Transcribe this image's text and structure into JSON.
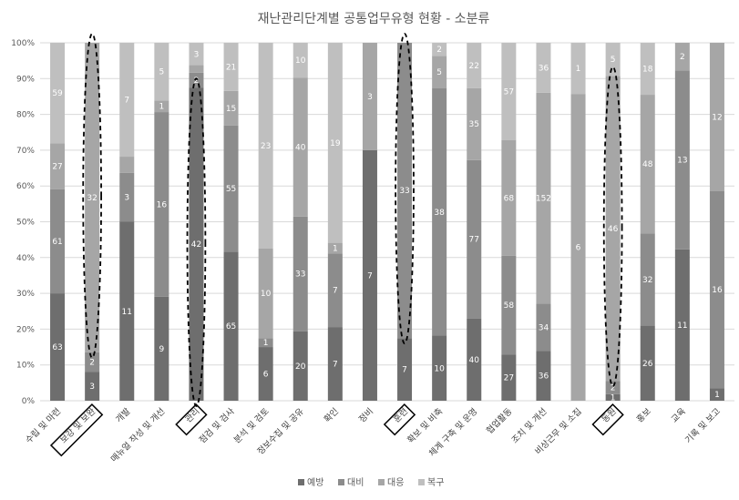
{
  "chart_data": {
    "type": "bar",
    "stacked": "percent",
    "title": "재난관리단계별 공통업무유형 현황 - 소분류",
    "xlabel": "",
    "ylabel": "",
    "ylim": [
      0,
      100
    ],
    "y_ticks": [
      "0%",
      "10%",
      "20%",
      "30%",
      "40%",
      "50%",
      "60%",
      "70%",
      "80%",
      "90%",
      "100%"
    ],
    "grid": true,
    "legend_position": "bottom",
    "categories": [
      "수립 및 마련",
      "보강 및 보완",
      "개발",
      "매뉴얼 작성 및 개선",
      "관리",
      "점검 및 검사",
      "분석 및 검토",
      "정보수집 및 공유",
      "확인",
      "정비",
      "훈련",
      "확보 및 비축",
      "체계 구축 및 운영",
      "협업활동",
      "조치 및 개선",
      "비상근무 및 소집",
      "동원",
      "홍보",
      "교육",
      "기록 및 보고"
    ],
    "highlighted_categories": [
      "보강 및 보완",
      "관리",
      "훈련",
      "동원"
    ],
    "series": [
      {
        "name": "예방",
        "color": "#6e6e6e",
        "values": [
          63,
          3,
          11,
          9,
          42,
          65,
          6,
          20,
          7,
          7,
          7,
          10,
          40,
          27,
          36,
          0,
          1,
          26,
          11,
          1
        ]
      },
      {
        "name": "대비",
        "color": "#8c8c8c",
        "values": [
          61,
          2,
          3,
          16,
          2,
          55,
          1,
          33,
          7,
          0,
          33,
          38,
          77,
          58,
          34,
          0,
          2,
          32,
          13,
          16
        ]
      },
      {
        "name": "대응",
        "color": "#a6a6a6",
        "values": [
          27,
          32,
          1,
          1,
          1,
          15,
          10,
          40,
          1,
          3,
          0,
          5,
          35,
          68,
          152,
          6,
          46,
          48,
          2,
          12
        ]
      },
      {
        "name": "복구",
        "color": "#bfbfbf",
        "values": [
          59,
          0,
          7,
          5,
          3,
          21,
          23,
          10,
          19,
          0,
          0,
          2,
          22,
          57,
          36,
          1,
          5,
          18,
          0,
          0
        ]
      }
    ],
    "data_labels": [
      [
        "63",
        "3",
        "11",
        "9",
        "42",
        "65",
        "6",
        "20",
        "7",
        "7",
        "7",
        "10",
        "40",
        "27",
        "36",
        "",
        "1",
        "26",
        "11",
        "1"
      ],
      [
        "61",
        "2",
        "3",
        "16",
        "2",
        "55",
        "1",
        "33",
        "7",
        "",
        "33",
        "38",
        "77",
        "58",
        "34",
        "",
        "2",
        "32",
        "13",
        "16"
      ],
      [
        "27",
        "32",
        "",
        "1",
        "",
        "15",
        "10",
        "40",
        "1",
        "3",
        "",
        "5",
        "35",
        "68",
        "152",
        "6",
        "46",
        "48",
        "2",
        "12"
      ],
      [
        "59",
        "",
        "7",
        "5",
        "3",
        "21",
        "23",
        "10",
        "19",
        "",
        "",
        "2",
        "22",
        "57",
        "36",
        "1",
        "5",
        "18",
        "",
        ""
      ]
    ]
  }
}
